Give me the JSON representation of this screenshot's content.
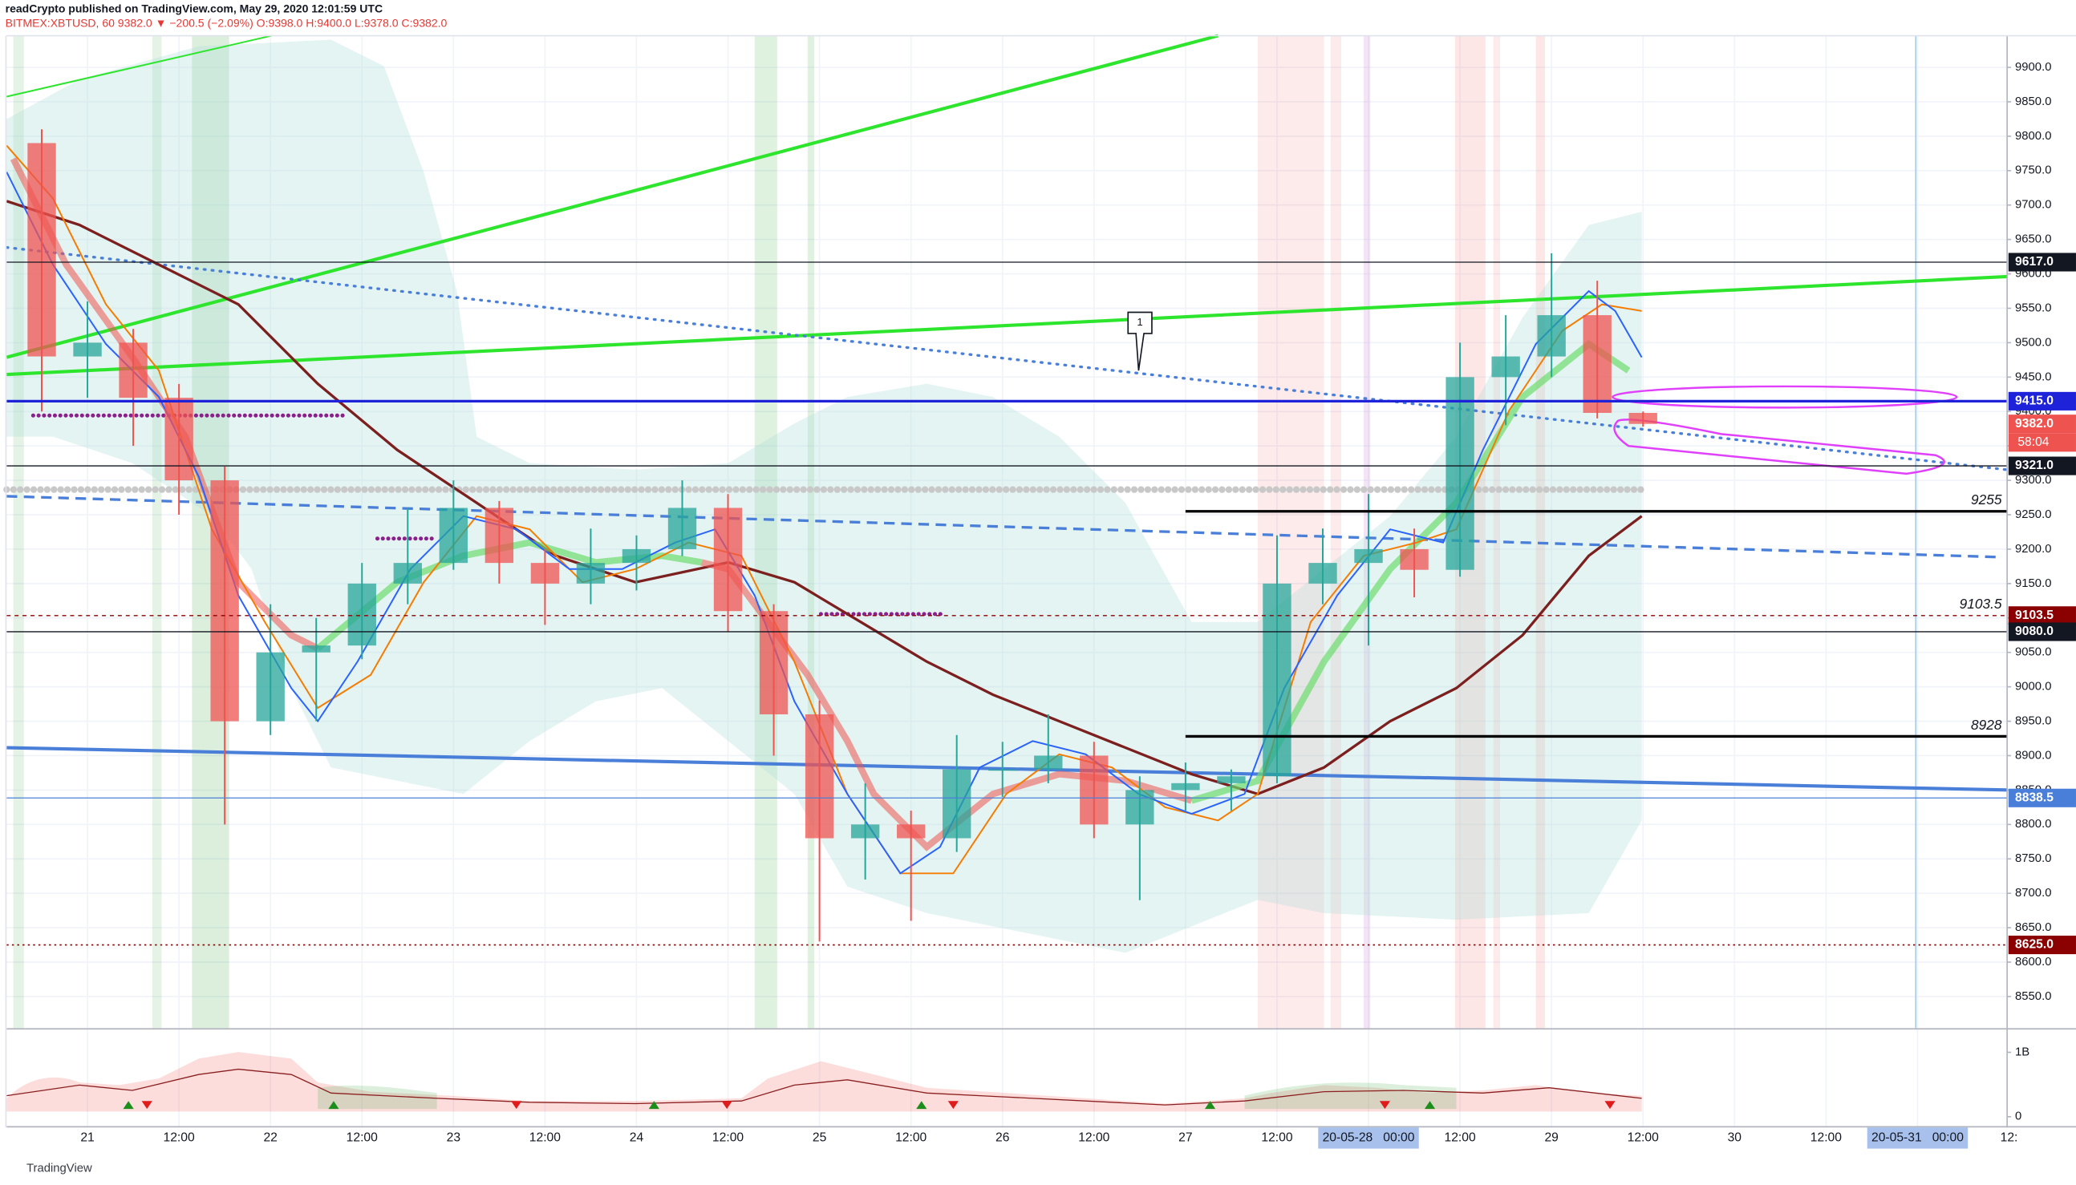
{
  "chart_data": {
    "type": "candlestick",
    "title": "readCrypto published on TradingView.com, May 29, 2020 12:01:59 UTC",
    "subtitle": "BITMEX:XBTUSD, 60  9382.0 ▼ −200.5 (−2.09%)  O:9398.0 H:9400.0 L:9378.0 C:9382.0",
    "footer": "TradingView",
    "callout_text": "1",
    "up_color": "#26a69a",
    "down_color": "#ef5350",
    "grid": true,
    "xlim": [
      "20-05-20 13:24",
      "20-05-31 11:45"
    ],
    "ylim": [
      8504,
      9946
    ],
    "xticks": [
      {
        "value": "20-05-21 00:00",
        "label": "21"
      },
      {
        "value": "20-05-21 12:00",
        "label": "12:00"
      },
      {
        "value": "20-05-22 00:00",
        "label": "22"
      },
      {
        "value": "20-05-22 12:00",
        "label": "12:00"
      },
      {
        "value": "20-05-23 00:00",
        "label": "23"
      },
      {
        "value": "20-05-23 12:00",
        "label": "12:00"
      },
      {
        "value": "20-05-24 00:00",
        "label": "24"
      },
      {
        "value": "20-05-24 12:00",
        "label": "12:00"
      },
      {
        "value": "20-05-25 00:00",
        "label": "25"
      },
      {
        "value": "20-05-25 12:00",
        "label": "12:00"
      },
      {
        "value": "20-05-26 00:00",
        "label": "26"
      },
      {
        "value": "20-05-26 12:00",
        "label": "12:00"
      },
      {
        "value": "20-05-27 00:00",
        "label": "27"
      },
      {
        "value": "20-05-27 12:00",
        "label": "12:00"
      },
      {
        "value": "20-05-28 00:00",
        "label": "20-05-28   00:00",
        "highlight": true
      },
      {
        "value": "20-05-28 12:00",
        "label": "12:00"
      },
      {
        "value": "20-05-29 00:00",
        "label": "29"
      },
      {
        "value": "20-05-29 12:00",
        "label": "12:00"
      },
      {
        "value": "20-05-30 00:00",
        "label": "30"
      },
      {
        "value": "20-05-30 12:00",
        "label": "12:00"
      },
      {
        "value": "20-05-31 00:00",
        "label": "20-05-31   00:00",
        "highlight": true
      },
      {
        "value": "20-05-31 12:00",
        "label": "12:"
      }
    ],
    "yticks": [
      {
        "value": 8550,
        "label": "8550.0"
      },
      {
        "value": 8600,
        "label": "8600.0"
      },
      {
        "value": 8650,
        "label": "8650.0"
      },
      {
        "value": 8700,
        "label": "8700.0"
      },
      {
        "value": 8750,
        "label": "8750.0"
      },
      {
        "value": 8800,
        "label": "8800.0"
      },
      {
        "value": 8850,
        "label": "8850.0"
      },
      {
        "value": 8900,
        "label": "8900.0"
      },
      {
        "value": 8950,
        "label": "8950.0"
      },
      {
        "value": 9000,
        "label": "9000.0"
      },
      {
        "value": 9050,
        "label": "9050.0"
      },
      {
        "value": 9100,
        "label": "9100.0"
      },
      {
        "value": 9150,
        "label": "9150.0"
      },
      {
        "value": 9200,
        "label": "9200.0"
      },
      {
        "value": 9250,
        "label": "9250.0"
      },
      {
        "value": 9300,
        "label": "9300.0"
      },
      {
        "value": 9350,
        "label": "9350.0"
      },
      {
        "value": 9400,
        "label": "9400.0"
      },
      {
        "value": 9450,
        "label": "9450.0"
      },
      {
        "value": 9500,
        "label": "9500.0"
      },
      {
        "value": 9550,
        "label": "9550.0"
      },
      {
        "value": 9600,
        "label": "9600.0"
      },
      {
        "value": 9650,
        "label": "9650.0"
      },
      {
        "value": 9700,
        "label": "9700.0"
      },
      {
        "value": 9750,
        "label": "9750.0"
      },
      {
        "value": 9800,
        "label": "9800.0"
      },
      {
        "value": 9850,
        "label": "9850.0"
      },
      {
        "value": 9900,
        "label": "9900.0"
      }
    ],
    "candles": {
      "x": [
        "20-05-20 18:00",
        "20-05-21 00:00",
        "20-05-21 06:00",
        "20-05-21 12:00",
        "20-05-21 18:00",
        "20-05-22 00:00",
        "20-05-22 06:00",
        "20-05-22 12:00",
        "20-05-22 18:00",
        "20-05-23 00:00",
        "20-05-23 06:00",
        "20-05-23 12:00",
        "20-05-23 18:00",
        "20-05-24 00:00",
        "20-05-24 06:00",
        "20-05-24 12:00",
        "20-05-24 18:00",
        "20-05-25 00:00",
        "20-05-25 06:00",
        "20-05-25 12:00",
        "20-05-25 18:00",
        "20-05-26 00:00",
        "20-05-26 06:00",
        "20-05-26 12:00",
        "20-05-26 18:00",
        "20-05-27 00:00",
        "20-05-27 06:00",
        "20-05-27 12:00",
        "20-05-27 18:00",
        "20-05-28 00:00",
        "20-05-28 06:00",
        "20-05-28 12:00",
        "20-05-28 18:00",
        "20-05-29 00:00",
        "20-05-29 06:00",
        "20-05-29 12:00"
      ],
      "open": [
        9790,
        9480,
        9500,
        9420,
        9300,
        8950,
        9050,
        9060,
        9150,
        9180,
        9260,
        9180,
        9150,
        9180,
        9200,
        9260,
        9110,
        8960,
        8780,
        8800,
        8780,
        8880,
        8880,
        8900,
        8800,
        8850,
        8860,
        8870,
        9150,
        9180,
        9200,
        9170,
        9450,
        9480,
        9540,
        9398
      ],
      "high": [
        9810,
        9560,
        9520,
        9440,
        9320,
        9120,
        9100,
        9180,
        9260,
        9300,
        9270,
        9200,
        9230,
        9220,
        9300,
        9280,
        9120,
        8980,
        8860,
        8820,
        8930,
        8920,
        8960,
        8920,
        8870,
        8890,
        8880,
        9220,
        9230,
        9280,
        9230,
        9500,
        9540,
        9630,
        9590,
        9400
      ],
      "low": [
        9400,
        9420,
        9350,
        9250,
        8800,
        8930,
        8950,
        9040,
        9120,
        9170,
        9150,
        9090,
        9120,
        9140,
        9190,
        9080,
        8900,
        8630,
        8720,
        8660,
        8760,
        8840,
        8860,
        8780,
        8690,
        8820,
        8820,
        8860,
        9120,
        9060,
        9130,
        9160,
        9380,
        9450,
        9390,
        9378
      ],
      "close": [
        9480,
        9500,
        9420,
        9300,
        8950,
        9050,
        9060,
        9150,
        9180,
        9260,
        9180,
        9150,
        9180,
        9200,
        9260,
        9110,
        8960,
        8780,
        8800,
        8780,
        8880,
        8880,
        8900,
        8800,
        8850,
        8860,
        8870,
        9150,
        9180,
        9200,
        9170,
        9450,
        9480,
        9540,
        9398,
        9382
      ]
    },
    "price_labels": [
      {
        "value": 9617,
        "label": "9617.0",
        "color": "#131722",
        "line": "solid"
      },
      {
        "value": 9415,
        "label": "9415.0",
        "color": "#1e22d8",
        "line": "thick"
      },
      {
        "value": 9382,
        "label": "9382.0",
        "color": "#ef5350",
        "line": "none"
      },
      {
        "value": 9321,
        "label": "9321.0",
        "color": "#131722",
        "line": "solid"
      },
      {
        "value": 9103.5,
        "label": "9103.5",
        "color": "#8b0000",
        "line": "dashed"
      },
      {
        "value": 9080,
        "label": "9080.0",
        "color": "#131722",
        "line": "solid"
      },
      {
        "value": 8838.5,
        "label": "8838.5",
        "color": "#4a7fd9",
        "line": "solid"
      },
      {
        "value": 8625,
        "label": "8625.0",
        "color": "#8b0000",
        "line": "dotted"
      }
    ],
    "countdown": {
      "text": "58:04",
      "color": "#ef5350"
    },
    "levels": [
      {
        "value": 9255,
        "start": "20-05-27 00:00"
      },
      {
        "value": 9103.5
      },
      {
        "value": 8928,
        "start": "20-05-27 00:00"
      }
    ],
    "indicator": {
      "ylim": [
        -146000000,
        1354000000
      ],
      "yticks": [
        0,
        {
          "value": 1000000000,
          "label": "1B"
        }
      ]
    }
  }
}
